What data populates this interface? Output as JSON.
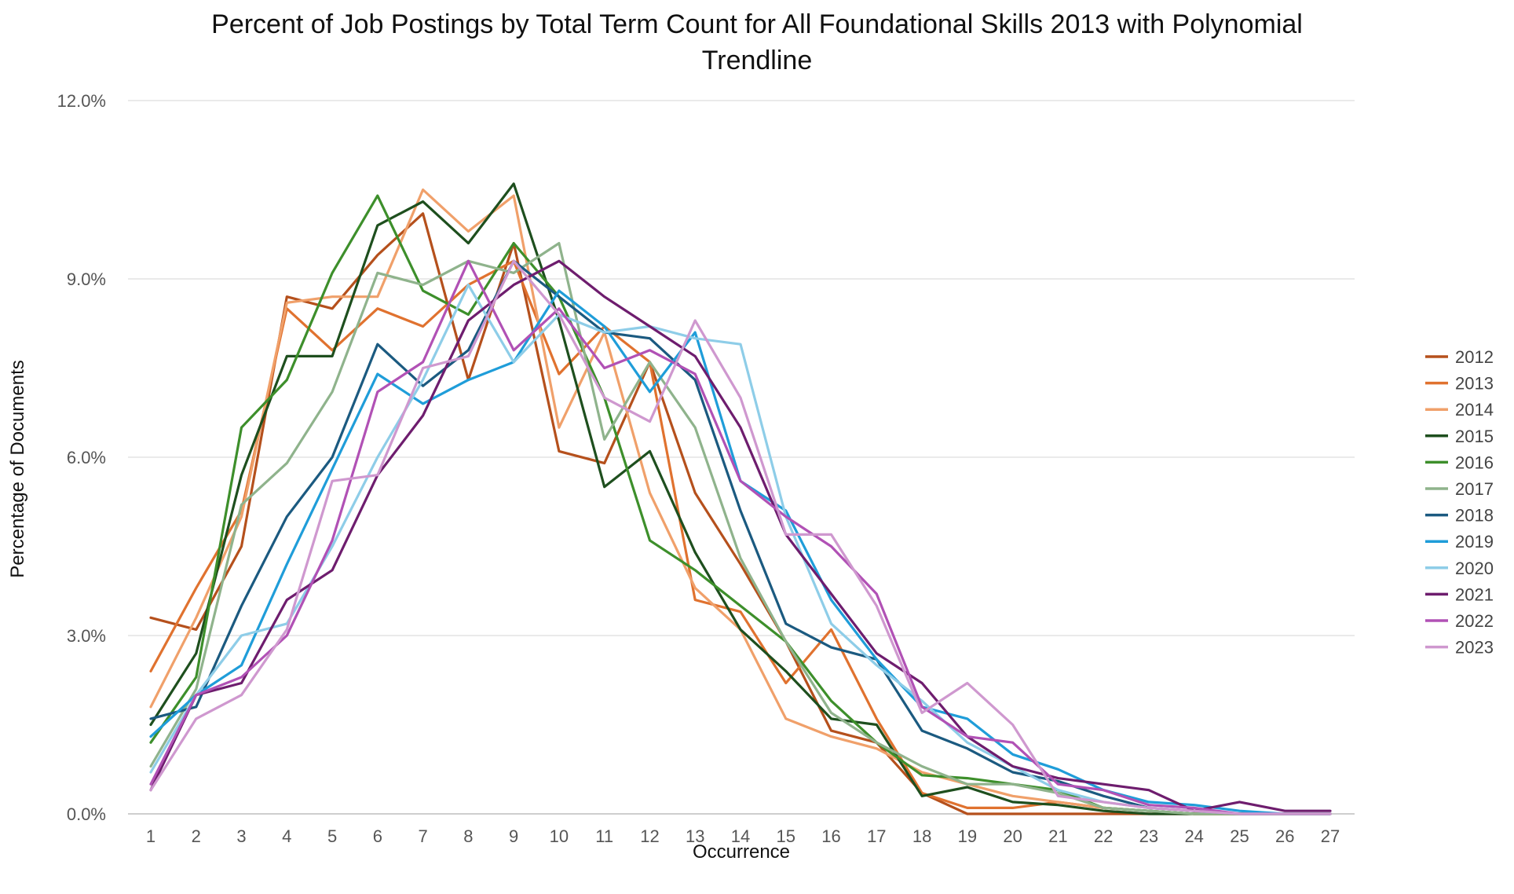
{
  "chart_data": {
    "type": "line",
    "title_lines": [
      "Percent of Job Postings by Total Term Count for All Foundational Skills 2013 with Polynomial",
      "Trendline"
    ],
    "xlabel": "Occurrence",
    "ylabel": "Percentage of Documents",
    "x": [
      1,
      2,
      3,
      4,
      5,
      6,
      7,
      8,
      9,
      10,
      11,
      12,
      13,
      14,
      15,
      16,
      17,
      18,
      19,
      20,
      21,
      22,
      23,
      24,
      25,
      26,
      27
    ],
    "ylim": [
      0,
      12
    ],
    "yticks": [
      0,
      3,
      6,
      9,
      12
    ],
    "ytick_labels": [
      "0.0%",
      "3.0%",
      "6.0%",
      "9.0%",
      "12.0%"
    ],
    "grid": true,
    "legend_position": "right",
    "series": [
      {
        "name": "2012",
        "color": "#b5501c",
        "values": [
          3.3,
          3.1,
          4.5,
          8.7,
          8.5,
          9.4,
          10.1,
          7.3,
          9.6,
          6.1,
          5.9,
          7.6,
          5.4,
          4.2,
          2.9,
          1.4,
          1.2,
          0.35,
          0,
          0,
          0,
          0,
          0,
          0,
          0,
          0,
          0
        ]
      },
      {
        "name": "2013",
        "color": "#e0722f",
        "values": [
          2.4,
          3.8,
          5.1,
          8.5,
          7.8,
          8.5,
          8.2,
          8.9,
          9.3,
          7.4,
          8.2,
          7.6,
          3.6,
          3.4,
          2.2,
          3.1,
          1.6,
          0.35,
          0.1,
          0.1,
          0.2,
          0.1,
          0.05,
          0,
          0,
          0,
          0
        ]
      },
      {
        "name": "2014",
        "color": "#f0a06a",
        "values": [
          1.8,
          3.3,
          5.0,
          8.6,
          8.7,
          8.7,
          10.5,
          9.8,
          10.4,
          6.5,
          8.1,
          5.4,
          3.8,
          3.1,
          1.6,
          1.3,
          1.1,
          0.7,
          0.5,
          0.3,
          0.2,
          0.1,
          0.05,
          0,
          0,
          0,
          0
        ]
      },
      {
        "name": "2015",
        "color": "#1e4f1e",
        "values": [
          1.5,
          2.7,
          5.7,
          7.7,
          7.7,
          9.9,
          10.3,
          9.6,
          10.6,
          8.3,
          5.5,
          6.1,
          4.4,
          3.1,
          2.4,
          1.6,
          1.5,
          0.3,
          0.45,
          0.2,
          0.15,
          0.05,
          0,
          0,
          0,
          0,
          0
        ]
      },
      {
        "name": "2016",
        "color": "#3d8f2b",
        "values": [
          1.2,
          2.3,
          6.5,
          7.3,
          9.1,
          10.4,
          8.8,
          8.4,
          9.6,
          8.7,
          7.0,
          4.6,
          4.1,
          3.5,
          2.9,
          1.9,
          1.2,
          0.65,
          0.6,
          0.5,
          0.4,
          0.1,
          0.05,
          0,
          0,
          0,
          0
        ]
      },
      {
        "name": "2017",
        "color": "#8fb38c",
        "values": [
          0.8,
          2.1,
          5.2,
          5.9,
          7.1,
          9.1,
          8.9,
          9.3,
          9.1,
          9.6,
          6.3,
          7.6,
          6.5,
          4.3,
          2.9,
          1.7,
          1.2,
          0.8,
          0.5,
          0.5,
          0.35,
          0.1,
          0.05,
          0,
          0,
          0,
          0
        ]
      },
      {
        "name": "2018",
        "color": "#1b5a80",
        "values": [
          1.6,
          1.8,
          3.5,
          5.0,
          6.0,
          7.9,
          7.2,
          7.8,
          9.3,
          8.7,
          8.1,
          8.0,
          7.3,
          5.1,
          3.2,
          2.8,
          2.6,
          1.4,
          1.1,
          0.7,
          0.55,
          0.3,
          0.1,
          0.05,
          0,
          0,
          0
        ]
      },
      {
        "name": "2019",
        "color": "#1f9dd9",
        "values": [
          1.3,
          2.0,
          2.5,
          4.2,
          5.8,
          7.4,
          6.9,
          7.3,
          7.6,
          8.8,
          8.2,
          7.1,
          8.1,
          5.6,
          5.1,
          3.6,
          2.6,
          1.8,
          1.6,
          1.0,
          0.75,
          0.4,
          0.2,
          0.15,
          0.05,
          0,
          0
        ]
      },
      {
        "name": "2020",
        "color": "#8ecde8",
        "values": [
          0.7,
          2.0,
          3.0,
          3.2,
          4.5,
          6.0,
          7.3,
          8.9,
          7.6,
          8.4,
          8.1,
          8.2,
          8.0,
          7.9,
          5.0,
          3.2,
          2.5,
          1.9,
          1.2,
          0.8,
          0.4,
          0.2,
          0.1,
          0.05,
          0,
          0,
          0
        ]
      },
      {
        "name": "2021",
        "color": "#6e1d6e",
        "values": [
          0.4,
          2.0,
          2.2,
          3.6,
          4.1,
          5.7,
          6.7,
          8.3,
          8.9,
          9.3,
          8.7,
          8.2,
          7.7,
          6.5,
          4.7,
          3.7,
          2.7,
          2.2,
          1.3,
          0.8,
          0.6,
          0.5,
          0.4,
          0.05,
          0.2,
          0.05,
          0.05
        ]
      },
      {
        "name": "2022",
        "color": "#b151b5",
        "values": [
          0.5,
          2.0,
          2.3,
          3.0,
          4.6,
          7.1,
          7.6,
          9.3,
          7.8,
          8.5,
          7.5,
          7.8,
          7.4,
          5.6,
          5.0,
          4.5,
          3.7,
          1.8,
          1.3,
          1.2,
          0.5,
          0.4,
          0.15,
          0.1,
          0,
          0,
          0
        ]
      },
      {
        "name": "2023",
        "color": "#cf98cf",
        "values": [
          0.4,
          1.6,
          2.0,
          3.1,
          5.6,
          5.7,
          7.5,
          7.7,
          9.3,
          8.4,
          7.0,
          6.6,
          8.3,
          7.0,
          4.7,
          4.7,
          3.5,
          1.7,
          2.2,
          1.5,
          0.3,
          0.2,
          0.1,
          0.05,
          0,
          0,
          0
        ]
      }
    ]
  }
}
